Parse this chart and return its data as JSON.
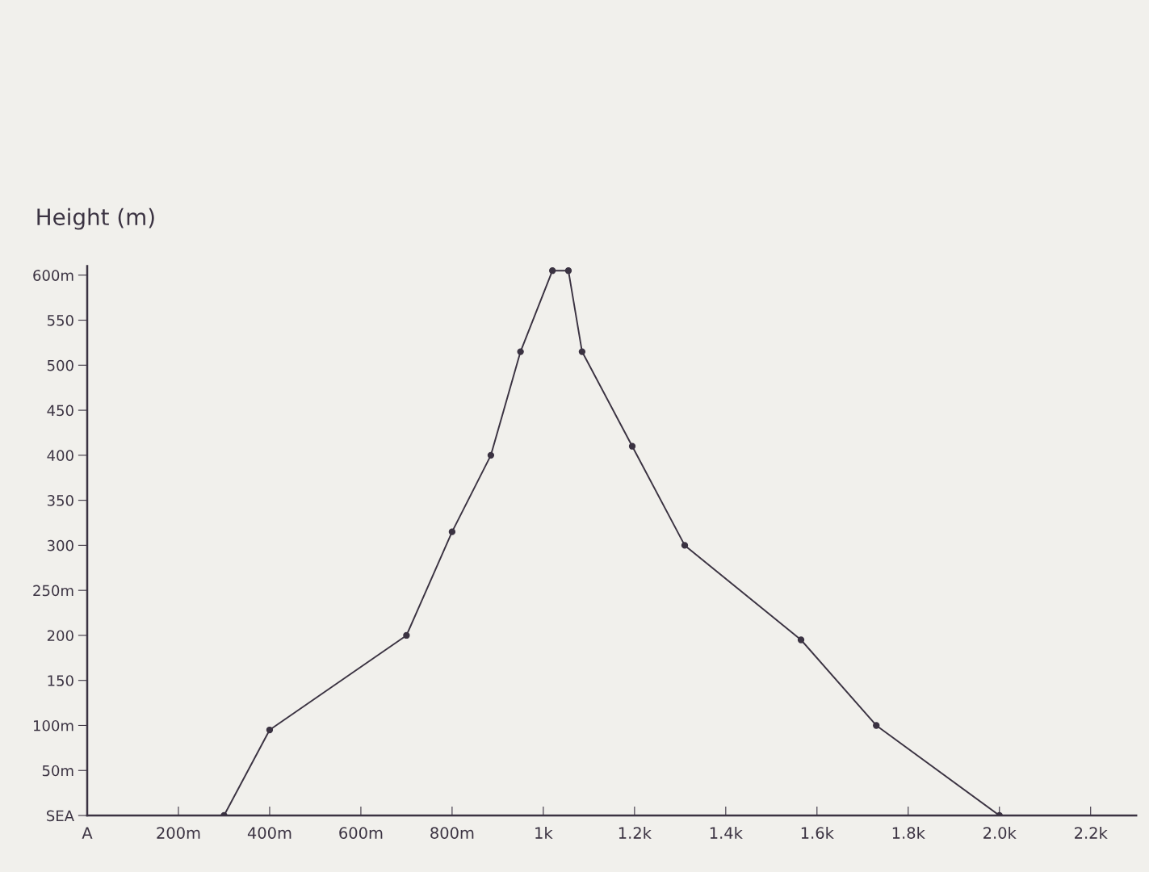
{
  "chart_data": {
    "type": "line",
    "ylabel": "Height (m)",
    "x": [
      300,
      400,
      700,
      800,
      885,
      950,
      1020,
      1055,
      1085,
      1195,
      1310,
      1565,
      1730,
      2000
    ],
    "series": [
      {
        "color": "#3b3342",
        "values": [
          0,
          95,
          200,
          315,
          400,
          515,
          605,
          605,
          515,
          410,
          300,
          195,
          100,
          0
        ]
      }
    ],
    "xlim": [
      0,
      2300
    ],
    "ylim": [
      0,
      610
    ],
    "xticks": [
      {
        "value": 0,
        "label": "A"
      },
      {
        "value": 200,
        "label": "200m"
      },
      {
        "value": 400,
        "label": "400m"
      },
      {
        "value": 600,
        "label": "600m"
      },
      {
        "value": 800,
        "label": "800m"
      },
      {
        "value": 1000,
        "label": "1k"
      },
      {
        "value": 1200,
        "label": "1.2k"
      },
      {
        "value": 1400,
        "label": "1.4k"
      },
      {
        "value": 1600,
        "label": "1.6k"
      },
      {
        "value": 1800,
        "label": "1.8k"
      },
      {
        "value": 2000,
        "label": "2.0k"
      },
      {
        "value": 2200,
        "label": "2.2k"
      }
    ],
    "yticks": [
      {
        "value": 0,
        "label": "SEA"
      },
      {
        "value": 50,
        "label": "50m"
      },
      {
        "value": 100,
        "label": "100m"
      },
      150,
      200,
      {
        "value": 250,
        "label": "250m"
      },
      300,
      350,
      400,
      450,
      500,
      550,
      {
        "value": 600,
        "label": "600m"
      }
    ],
    "grid": false,
    "marker": "circle",
    "line_style": "solid"
  }
}
